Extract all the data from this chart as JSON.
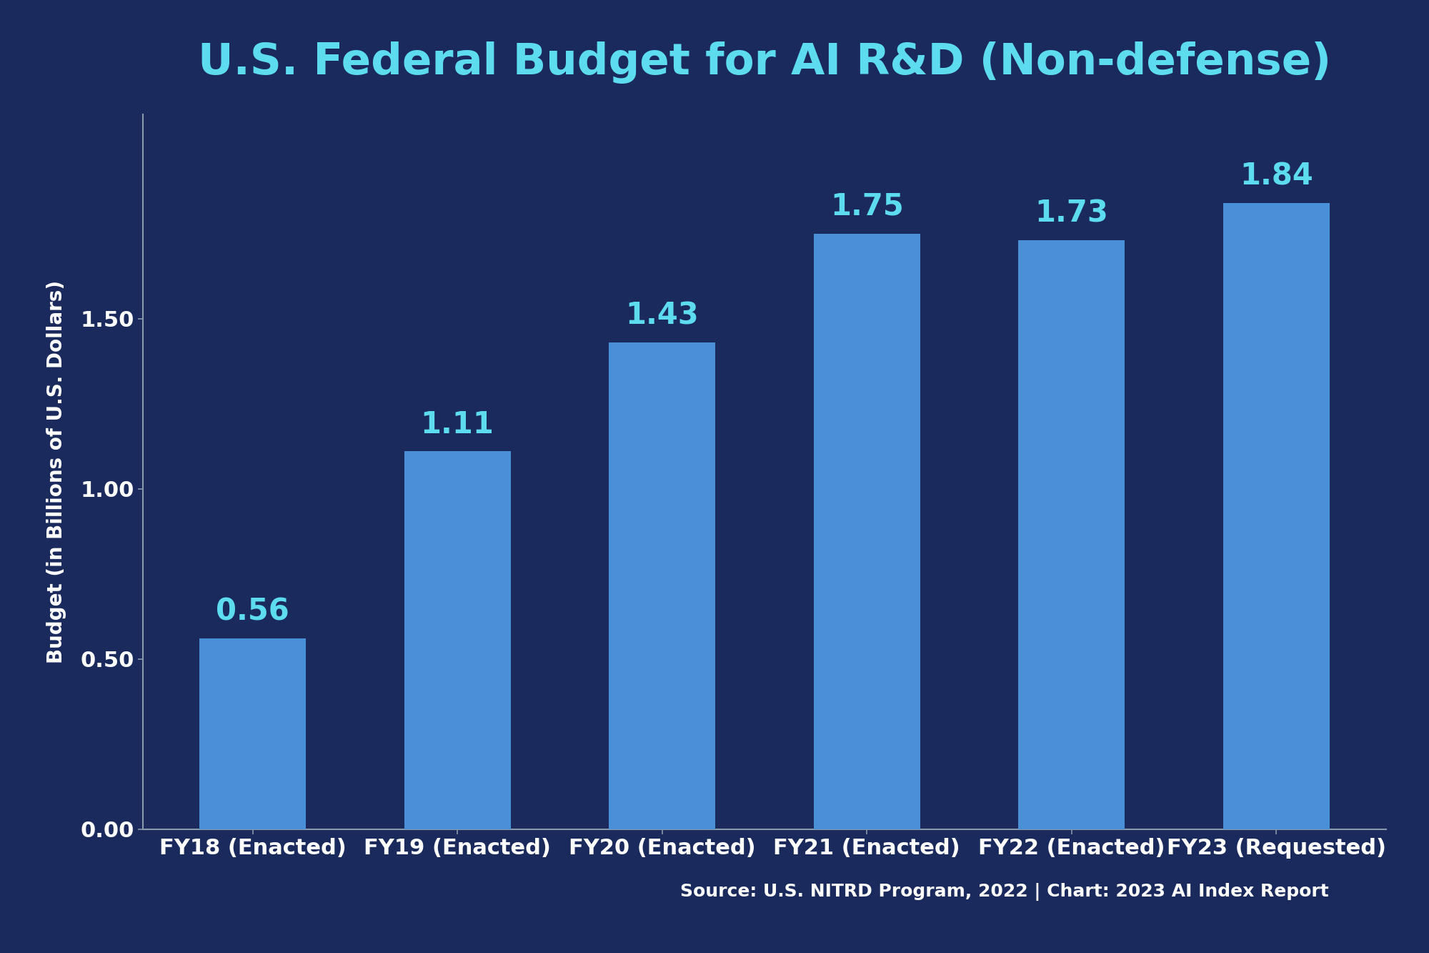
{
  "title": "U.S. Federal Budget for AI R&D (Non-defense)",
  "categories": [
    "FY18 (Enacted)",
    "FY19 (Enacted)",
    "FY20 (Enacted)",
    "FY21 (Enacted)",
    "FY22 (Enacted)",
    "FY23 (Requested)"
  ],
  "values": [
    0.56,
    1.11,
    1.43,
    1.75,
    1.73,
    1.84
  ],
  "bar_color": "#4A90D9",
  "background_color": "#1B2A5C",
  "title_color": "#5DDCF0",
  "bar_label_color": "#5DDCF0",
  "tick_label_color": "#FFFFFF",
  "source_text": "Source: U.S. NITRD Program, 2022 | Chart: 2023 AI Index Report",
  "source_color": "#FFFFFF",
  "ylabel": "Budget (in Billions of U.S. Dollars)",
  "ylabel_color": "#FFFFFF",
  "ylim": [
    0,
    2.1
  ],
  "yticks": [
    0.0,
    0.5,
    1.0,
    1.5
  ],
  "title_fontsize": 44,
  "bar_label_fontsize": 30,
  "tick_fontsize": 22,
  "ylabel_fontsize": 20,
  "source_fontsize": 18,
  "spine_color": "#8899AA",
  "left_spine_color": "#8899AA"
}
